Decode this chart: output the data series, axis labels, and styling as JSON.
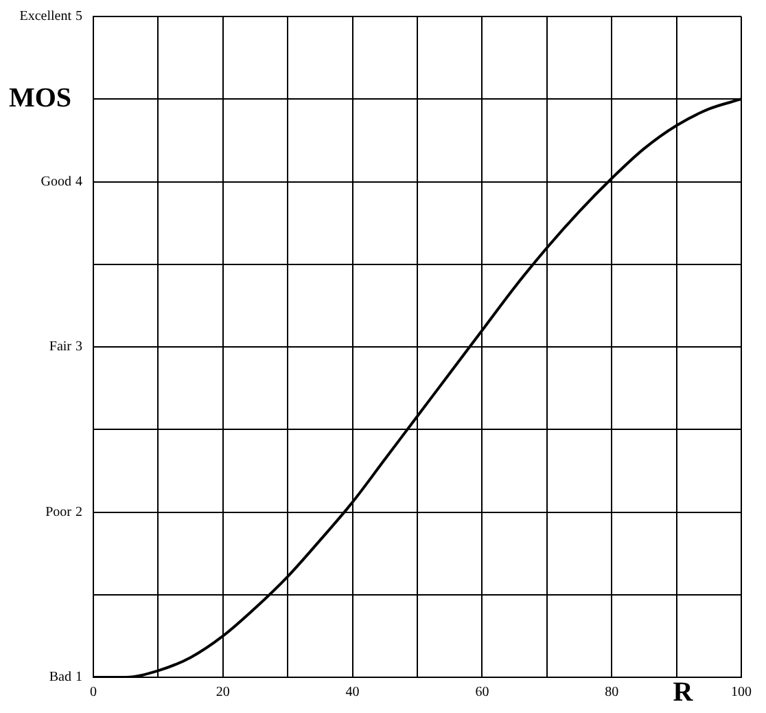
{
  "chart_data": {
    "type": "line",
    "xlabel": "R",
    "ylabel": "MOS",
    "annotations": [
      "Bad",
      "Poor",
      "Fair",
      "Good",
      "Excellent"
    ],
    "x": [
      0,
      5,
      10,
      15,
      20,
      25,
      30,
      35,
      40,
      45,
      50,
      55,
      60,
      65,
      70,
      75,
      80,
      85,
      90,
      95,
      100
    ],
    "series": [
      {
        "color": "#000000",
        "values": [
          1,
          1,
          1.04,
          1.12,
          1.25,
          1.42,
          1.61,
          1.83,
          2.06,
          2.32,
          2.58,
          2.84,
          3.1,
          3.36,
          3.6,
          3.82,
          4.02,
          4.2,
          4.34,
          4.44,
          4.5
        ]
      }
    ],
    "xlim": [
      0,
      100
    ],
    "xticks": [
      0,
      {
        "value": 10,
        "label": null
      },
      20,
      {
        "value": 30,
        "label": null
      },
      40,
      {
        "value": 50,
        "label": null
      },
      60,
      {
        "value": 70,
        "label": null
      },
      80,
      {
        "value": 90,
        "label": null
      },
      100
    ],
    "ylim": [
      1,
      5
    ],
    "yticks": [
      1,
      {
        "value": 1.5,
        "label": null
      },
      2,
      {
        "value": 2.5,
        "label": null
      },
      3,
      {
        "value": 3.5,
        "label": null
      },
      4,
      {
        "value": 4.5,
        "label": null
      },
      5
    ],
    "grid": true,
    "legend": false,
    "marker": "none",
    "line_style": "solid"
  }
}
